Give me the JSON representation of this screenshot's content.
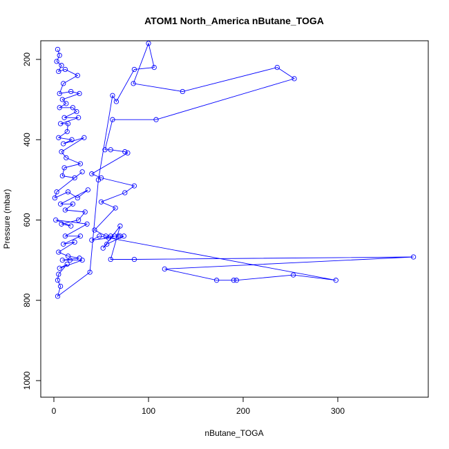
{
  "chart_data": {
    "type": "line",
    "title": "ATOM1 North_America nButane_TOGA",
    "xlabel": "nButane_TOGA",
    "ylabel": "Pressure (mbar)",
    "xlim": [
      0,
      380
    ],
    "ylim": [
      1040,
      160
    ],
    "y_axis_reversed": true,
    "x_ticks": [
      0,
      100,
      200,
      300
    ],
    "y_ticks": [
      200,
      400,
      600,
      800,
      1000
    ],
    "marker": "open-circle",
    "line_color": "#0000ff",
    "grid": false,
    "legend": "none",
    "series": [
      {
        "points": [
          [
            4,
            175
          ],
          [
            6,
            190
          ],
          [
            3,
            205
          ],
          [
            8,
            215
          ],
          [
            5,
            230
          ],
          [
            12,
            225
          ],
          [
            25,
            240
          ],
          [
            10,
            260
          ],
          [
            6,
            285
          ],
          [
            18,
            280
          ],
          [
            27,
            285
          ],
          [
            9,
            300
          ],
          [
            13,
            310
          ],
          [
            6,
            320
          ],
          [
            20,
            320
          ],
          [
            24,
            330
          ],
          [
            11,
            345
          ],
          [
            26,
            345
          ],
          [
            7,
            360
          ],
          [
            15,
            360
          ],
          [
            14,
            380
          ],
          [
            5,
            395
          ],
          [
            19,
            400
          ],
          [
            10,
            410
          ],
          [
            32,
            395
          ],
          [
            8,
            430
          ],
          [
            13,
            445
          ],
          [
            28,
            460
          ],
          [
            11,
            470
          ],
          [
            9,
            490
          ],
          [
            22,
            495
          ],
          [
            30,
            480
          ],
          [
            3,
            530
          ],
          [
            1,
            545
          ],
          [
            15,
            530
          ],
          [
            25,
            545
          ],
          [
            36,
            525
          ],
          [
            7,
            560
          ],
          [
            20,
            560
          ],
          [
            12,
            575
          ],
          [
            33,
            580
          ],
          [
            26,
            600
          ],
          [
            8,
            610
          ],
          [
            18,
            615
          ],
          [
            2,
            600
          ],
          [
            35,
            610
          ],
          [
            12,
            640
          ],
          [
            28,
            640
          ],
          [
            10,
            660
          ],
          [
            22,
            655
          ],
          [
            5,
            680
          ],
          [
            15,
            690
          ],
          [
            27,
            695
          ],
          [
            9,
            700
          ],
          [
            17,
            700
          ],
          [
            30,
            700
          ],
          [
            6,
            720
          ],
          [
            14,
            710
          ],
          [
            5,
            735
          ],
          [
            4,
            750
          ],
          [
            7,
            765
          ],
          [
            4,
            790
          ],
          [
            38,
            730
          ],
          [
            47,
            500
          ],
          [
            62,
            290
          ],
          [
            66,
            305
          ],
          [
            85,
            225
          ],
          [
            106,
            220
          ],
          [
            100,
            160
          ],
          [
            84,
            260
          ],
          [
            136,
            280
          ],
          [
            236,
            220
          ],
          [
            254,
            248
          ],
          [
            108,
            350
          ],
          [
            62,
            350
          ],
          [
            54,
            425
          ],
          [
            60,
            425
          ],
          [
            75,
            430
          ],
          [
            78,
            433
          ],
          [
            40,
            485
          ],
          [
            50,
            495
          ],
          [
            85,
            515
          ],
          [
            75,
            532
          ],
          [
            50,
            555
          ],
          [
            65,
            570
          ],
          [
            43,
            625
          ],
          [
            55,
            640
          ],
          [
            60,
            640
          ],
          [
            70,
            640
          ],
          [
            74,
            640
          ],
          [
            56,
            660
          ],
          [
            52,
            670
          ],
          [
            70,
            615
          ],
          [
            60,
            698
          ],
          [
            85,
            698
          ],
          [
            380,
            692
          ],
          [
            117,
            722
          ],
          [
            172,
            750
          ],
          [
            190,
            750
          ],
          [
            193,
            750
          ],
          [
            253,
            737
          ],
          [
            298,
            750
          ],
          [
            48,
            640
          ],
          [
            40,
            650
          ],
          [
            58,
            645
          ],
          [
            64,
            640
          ],
          [
            68,
            640
          ]
        ]
      }
    ]
  }
}
